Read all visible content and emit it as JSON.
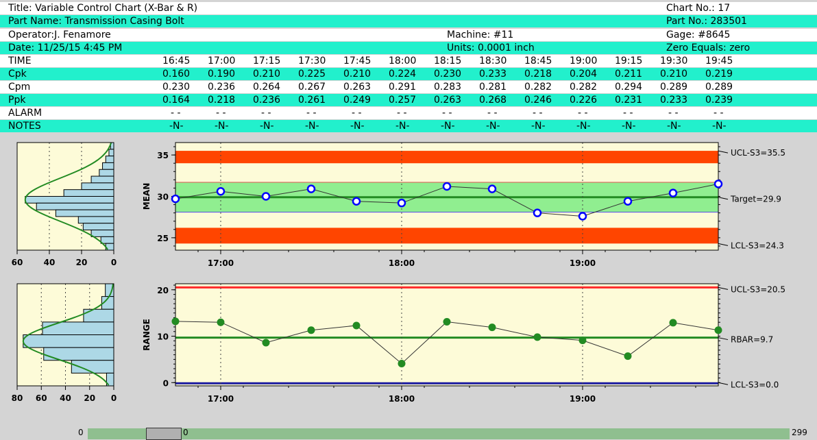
{
  "header": {
    "title": "Title: Variable Control Chart (X-Bar & R)",
    "chart_no": "Chart No.: 17",
    "part_name": "Part Name: Transmission Casing Bolt",
    "part_no": "Part No.: 283501",
    "operator": "Operator:J. Fenamore",
    "machine": "Machine: #11",
    "gage": "Gage: #8645",
    "date": "Date: 11/25/15 4:45 PM",
    "units": "Units: 0.0001 inch",
    "zero": "Zero Equals: zero"
  },
  "table": {
    "rows": [
      {
        "label": "TIME",
        "values": [
          "16:45",
          "17:00",
          "17:15",
          "17:30",
          "17:45",
          "18:00",
          "18:15",
          "18:30",
          "18:45",
          "19:00",
          "19:15",
          "19:30",
          "19:45"
        ]
      },
      {
        "label": "Cpk",
        "values": [
          "0.160",
          "0.190",
          "0.210",
          "0.225",
          "0.210",
          "0.224",
          "0.230",
          "0.233",
          "0.218",
          "0.204",
          "0.211",
          "0.210",
          "0.219"
        ]
      },
      {
        "label": "Cpm",
        "values": [
          "0.230",
          "0.236",
          "0.264",
          "0.267",
          "0.263",
          "0.291",
          "0.283",
          "0.281",
          "0.282",
          "0.282",
          "0.294",
          "0.289",
          "0.289"
        ]
      },
      {
        "label": "Ppk",
        "values": [
          "0.164",
          "0.218",
          "0.236",
          "0.261",
          "0.249",
          "0.257",
          "0.263",
          "0.268",
          "0.246",
          "0.226",
          "0.231",
          "0.233",
          "0.239"
        ]
      },
      {
        "label": "ALARM",
        "values": [
          "-  -",
          "-  -",
          "-  -",
          "-  -",
          "-  -",
          "-  -",
          "-  -",
          "-  -",
          "-  -",
          "-  -",
          "-  -",
          "-  -",
          "-  -"
        ]
      },
      {
        "label": "NOTES",
        "values": [
          "-N-",
          "-N-",
          "-N-",
          "-N-",
          "-N-",
          "-N-",
          "-N-",
          "-N-",
          "-N-",
          "-N-",
          "-N-",
          "-N-",
          "-N-"
        ]
      }
    ]
  },
  "chart_data": [
    {
      "type": "line",
      "name": "mean",
      "ylabel": "MEAN",
      "x": [
        "16:45",
        "17:00",
        "17:15",
        "17:30",
        "17:45",
        "18:00",
        "18:15",
        "18:30",
        "18:45",
        "19:00",
        "19:15",
        "19:30",
        "19:45"
      ],
      "values": [
        29.7,
        30.6,
        30.0,
        30.9,
        29.4,
        29.2,
        31.2,
        30.9,
        28.0,
        27.6,
        29.4,
        30.4,
        31.5
      ],
      "xticks": [
        "17:00",
        "18:00",
        "19:00"
      ],
      "yticks": [
        25,
        30,
        35
      ],
      "ylim": [
        23.5,
        36.5
      ],
      "ucl": 35.5,
      "target": 29.9,
      "lcl": 24.3,
      "zone_upper": 31.7,
      "zone_lower": 28.1,
      "ucl_label": "UCL-S3=35.5",
      "target_label": "Target=29.9",
      "lcl_label": "LCL-S3=24.3",
      "histogram": {
        "xticks": [
          "60",
          "40",
          "20",
          "0"
        ],
        "xlim": [
          60,
          0
        ],
        "counts": [
          2,
          3,
          5,
          7,
          9,
          14,
          20,
          31,
          55,
          48,
          36,
          22,
          19,
          14,
          8,
          5
        ]
      }
    },
    {
      "type": "line",
      "name": "range",
      "ylabel": "RANGE",
      "x": [
        "16:45",
        "17:00",
        "17:15",
        "17:30",
        "17:45",
        "18:00",
        "18:15",
        "18:30",
        "18:45",
        "19:00",
        "19:15",
        "19:30",
        "19:45"
      ],
      "values": [
        13.2,
        13.0,
        8.6,
        11.3,
        12.3,
        4.1,
        13.1,
        11.9,
        9.8,
        9.1,
        5.7,
        12.9,
        11.3
      ],
      "xticks": [
        "17:00",
        "18:00",
        "19:00"
      ],
      "yticks": [
        0,
        10,
        20
      ],
      "ylim": [
        -0.7,
        21.3
      ],
      "ucl": 20.5,
      "rbar": 9.7,
      "lcl": 0.0,
      "ucl_label": "UCL-S3=20.5",
      "rbar_label": "RBAR=9.7",
      "lcl_label": "LCL-S3=0.0",
      "histogram": {
        "xticks": [
          "80",
          "60",
          "40",
          "20",
          "0"
        ],
        "xlim": [
          80,
          0
        ],
        "counts": [
          7,
          10,
          25,
          59,
          75,
          58,
          35,
          6
        ]
      }
    }
  ],
  "scrollbar": {
    "min": "0",
    "value": "0",
    "max": "299"
  }
}
